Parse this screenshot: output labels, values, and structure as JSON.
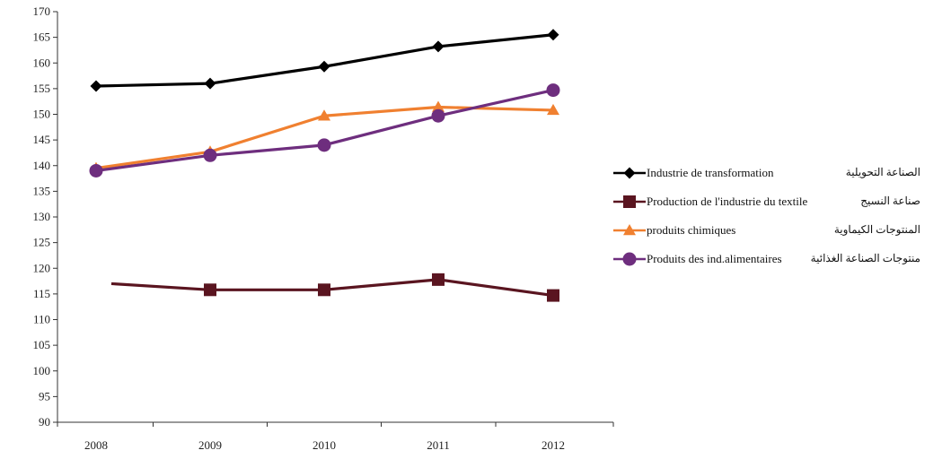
{
  "chart_data": {
    "type": "line",
    "title": "",
    "xlabel": "",
    "ylabel": "",
    "categories": [
      "2008",
      "2009",
      "2010",
      "2011",
      "2012"
    ],
    "ylim": [
      90,
      170
    ],
    "yticks": [
      "90",
      "95",
      "100",
      "105",
      "110",
      "115",
      "120",
      "125",
      "130",
      "135",
      "140",
      "145",
      "150",
      "155",
      "160",
      "165",
      "170"
    ],
    "grid": false,
    "legend_position": "right",
    "series": [
      {
        "name": "Industrie de transformation",
        "name_ar": "الصناعة التحويلية",
        "values": [
          155.5,
          156.0,
          159.3,
          163.2,
          165.5
        ],
        "color": "#000000",
        "marker": "diamond"
      },
      {
        "name": "Production de l'industrie du textile",
        "name_ar": "صناعة النسيج",
        "values": [
          117.0,
          115.8,
          115.8,
          117.8,
          114.7
        ],
        "color": "#5a1520",
        "marker": "square"
      },
      {
        "name": "produits chimiques",
        "name_ar": "المنتوجات الكيماوية",
        "values": [
          139.5,
          142.7,
          149.7,
          151.4,
          150.8
        ],
        "color": "#f08030",
        "marker": "triangle"
      },
      {
        "name": "Produits des ind.alimentaires",
        "name_ar": "منتوجات الصناعة الغذائية",
        "values": [
          139.0,
          142.0,
          144.0,
          149.7,
          154.7
        ],
        "color": "#6e2e7e",
        "marker": "circle"
      }
    ]
  }
}
